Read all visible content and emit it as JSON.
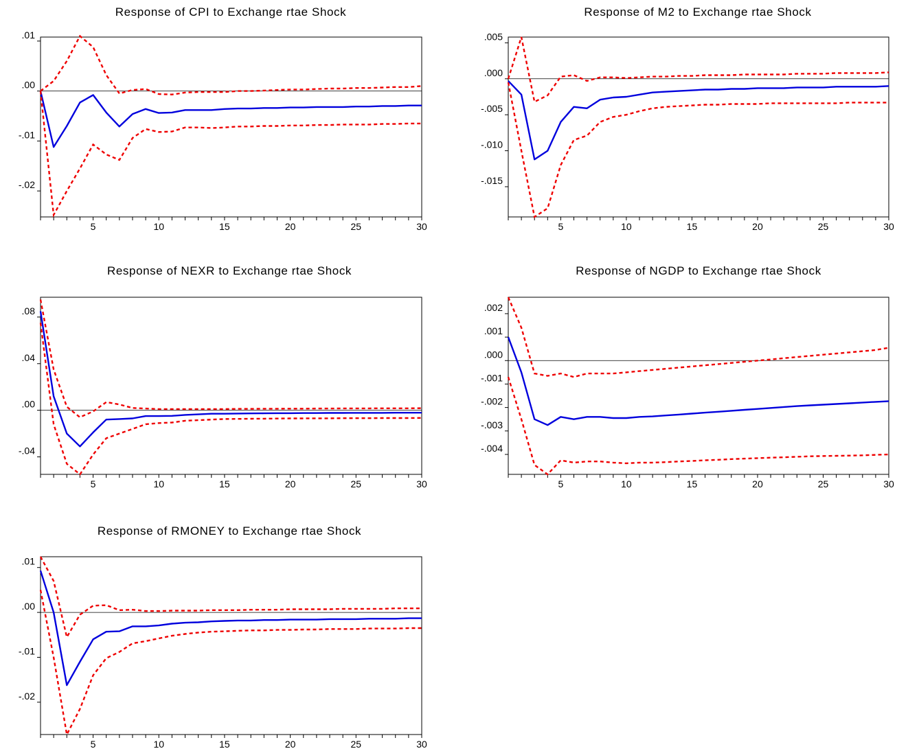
{
  "chart_data": [
    {
      "type": "line",
      "title": "Response of CPI to Exchange rtae Shock",
      "x_ticks": [
        "5",
        "10",
        "15",
        "20",
        "25",
        "30"
      ],
      "y_ticks": [
        ".01",
        ".00",
        "-.01",
        "-.02"
      ],
      "xlim": [
        1,
        30
      ],
      "ylim": [
        -0.0252,
        0.0108
      ],
      "grid": false,
      "x": [
        1,
        2,
        3,
        4,
        5,
        6,
        7,
        8,
        9,
        10,
        11,
        12,
        13,
        14,
        15,
        16,
        17,
        18,
        19,
        20,
        21,
        22,
        23,
        24,
        25,
        26,
        27,
        28,
        29,
        30
      ],
      "series": [
        {
          "style": "solid",
          "color": "#0000dd",
          "values": [
            0.0,
            -0.0112,
            -0.007,
            -0.0023,
            -0.0008,
            -0.0043,
            -0.0071,
            -0.0046,
            -0.0036,
            -0.0044,
            -0.0043,
            -0.0038,
            -0.0038,
            -0.0038,
            -0.0036,
            -0.0035,
            -0.0035,
            -0.0034,
            -0.0034,
            -0.0033,
            -0.0033,
            -0.0032,
            -0.0032,
            -0.0032,
            -0.0031,
            -0.0031,
            -0.003,
            -0.003,
            -0.0029,
            -0.0029
          ]
        },
        {
          "style": "dashed",
          "color": "#ee0000",
          "values": [
            0.0,
            0.002,
            0.006,
            0.011,
            0.0088,
            0.0032,
            -0.0005,
            0.0002,
            0.0004,
            -0.0006,
            -0.0007,
            -0.0003,
            -0.0002,
            -0.0002,
            -0.0002,
            0.0,
            0.0,
            0.0001,
            0.0002,
            0.0003,
            0.0003,
            0.0004,
            0.0005,
            0.0005,
            0.0006,
            0.0006,
            0.0007,
            0.0008,
            0.0008,
            0.001
          ]
        },
        {
          "style": "dashed",
          "color": "#ee0000",
          "values": [
            0.0,
            -0.0248,
            -0.02,
            -0.0155,
            -0.0107,
            -0.0127,
            -0.0138,
            -0.0094,
            -0.0076,
            -0.0082,
            -0.0081,
            -0.0073,
            -0.0073,
            -0.0074,
            -0.0073,
            -0.0071,
            -0.0071,
            -0.007,
            -0.007,
            -0.0069,
            -0.0069,
            -0.0068,
            -0.0068,
            -0.0067,
            -0.0067,
            -0.0067,
            -0.0066,
            -0.0066,
            -0.0065,
            -0.0065
          ]
        }
      ]
    },
    {
      "type": "line",
      "title": "Response of M2 to  Exchange rtae Shock",
      "x_ticks": [
        "5",
        "10",
        "15",
        "20",
        "25",
        "30"
      ],
      "y_ticks": [
        ".005",
        ".000",
        "-.005",
        "-.010",
        "-.015"
      ],
      "xlim": [
        1,
        30
      ],
      "ylim": [
        -0.0192,
        0.0058
      ],
      "grid": false,
      "x": [
        1,
        2,
        3,
        4,
        5,
        6,
        7,
        8,
        9,
        10,
        11,
        12,
        13,
        14,
        15,
        16,
        17,
        18,
        19,
        20,
        21,
        22,
        23,
        24,
        25,
        26,
        27,
        28,
        29,
        30
      ],
      "series": [
        {
          "style": "solid",
          "color": "#0000dd",
          "values": [
            -0.0003,
            -0.0022,
            -0.0112,
            -0.01,
            -0.006,
            -0.0039,
            -0.0041,
            -0.0029,
            -0.0026,
            -0.0025,
            -0.0022,
            -0.0019,
            -0.0018,
            -0.0017,
            -0.0016,
            -0.0015,
            -0.0015,
            -0.0014,
            -0.0014,
            -0.0013,
            -0.0013,
            -0.0013,
            -0.0012,
            -0.0012,
            -0.0012,
            -0.0011,
            -0.0011,
            -0.0011,
            -0.0011,
            -0.001
          ]
        },
        {
          "style": "dashed",
          "color": "#ee0000",
          "values": [
            0.0,
            0.0058,
            -0.0032,
            -0.0023,
            0.0003,
            0.0005,
            -0.0003,
            0.0002,
            0.0002,
            0.0001,
            0.0002,
            0.0003,
            0.0003,
            0.0004,
            0.0004,
            0.0005,
            0.0005,
            0.0005,
            0.0006,
            0.0006,
            0.0006,
            0.0006,
            0.0007,
            0.0007,
            0.0007,
            0.0008,
            0.0008,
            0.0008,
            0.0008,
            0.0009
          ]
        },
        {
          "style": "dashed",
          "color": "#ee0000",
          "values": [
            -0.0005,
            -0.01,
            -0.0192,
            -0.018,
            -0.012,
            -0.0085,
            -0.0079,
            -0.006,
            -0.0053,
            -0.005,
            -0.0045,
            -0.0041,
            -0.0039,
            -0.0038,
            -0.0037,
            -0.0036,
            -0.0036,
            -0.0035,
            -0.0035,
            -0.0035,
            -0.0034,
            -0.0034,
            -0.0034,
            -0.0034,
            -0.0034,
            -0.0034,
            -0.0033,
            -0.0033,
            -0.0033,
            -0.0033
          ]
        }
      ]
    },
    {
      "type": "line",
      "title": "Response of NEXR to  Exchange rtae Shock",
      "x_ticks": [
        "5",
        "10",
        "15",
        "20",
        "25",
        "30"
      ],
      "y_ticks": [
        ".08",
        ".04",
        ".00",
        "-.04"
      ],
      "xlim": [
        1,
        30
      ],
      "ylim": [
        -0.055,
        0.097
      ],
      "grid": false,
      "x": [
        1,
        2,
        3,
        4,
        5,
        6,
        7,
        8,
        9,
        10,
        11,
        12,
        13,
        14,
        15,
        16,
        17,
        18,
        19,
        20,
        21,
        22,
        23,
        24,
        25,
        26,
        27,
        28,
        29,
        30
      ],
      "series": [
        {
          "style": "solid",
          "color": "#0000dd",
          "values": [
            0.085,
            0.012,
            -0.02,
            -0.031,
            -0.019,
            -0.008,
            -0.0075,
            -0.007,
            -0.005,
            -0.005,
            -0.0048,
            -0.004,
            -0.0035,
            -0.003,
            -0.003,
            -0.0028,
            -0.0027,
            -0.0026,
            -0.0025,
            -0.0025,
            -0.0024,
            -0.0024,
            -0.0023,
            -0.0023,
            -0.0022,
            -0.0022,
            -0.0022,
            -0.0021,
            -0.0021,
            -0.0021
          ]
        },
        {
          "style": "dashed",
          "color": "#ee0000",
          "values": [
            0.095,
            0.035,
            0.003,
            -0.006,
            -0.001,
            0.007,
            0.005,
            0.002,
            0.0015,
            0.001,
            0.001,
            0.001,
            0.001,
            0.001,
            0.001,
            0.0012,
            0.0012,
            0.0013,
            0.0013,
            0.0014,
            0.0014,
            0.0015,
            0.0015,
            0.0016,
            0.0016,
            0.0016,
            0.0017,
            0.0017,
            0.0017,
            0.0018
          ]
        },
        {
          "style": "dashed",
          "color": "#ee0000",
          "values": [
            0.075,
            -0.012,
            -0.046,
            -0.055,
            -0.038,
            -0.024,
            -0.02,
            -0.016,
            -0.012,
            -0.011,
            -0.0105,
            -0.009,
            -0.0085,
            -0.008,
            -0.0075,
            -0.0074,
            -0.0073,
            -0.0072,
            -0.0071,
            -0.007,
            -0.007,
            -0.0069,
            -0.0069,
            -0.0068,
            -0.0068,
            -0.0068,
            -0.0067,
            -0.0067,
            -0.0067,
            -0.0066
          ]
        }
      ]
    },
    {
      "type": "line",
      "title": "Response of NGDP to  Exchange rtae Shock",
      "x_ticks": [
        "5",
        "10",
        "15",
        "20",
        "25",
        "30"
      ],
      "y_ticks": [
        ".002",
        ".001",
        ".000",
        "-.001",
        "-.002",
        "-.003",
        "-.004"
      ],
      "xlim": [
        1,
        30
      ],
      "ylim": [
        -0.00485,
        0.0027
      ],
      "grid": false,
      "x": [
        1,
        2,
        3,
        4,
        5,
        6,
        7,
        8,
        9,
        10,
        11,
        12,
        13,
        14,
        15,
        16,
        17,
        18,
        19,
        20,
        21,
        22,
        23,
        24,
        25,
        26,
        27,
        28,
        29,
        30
      ],
      "series": [
        {
          "style": "solid",
          "color": "#0000dd",
          "values": [
            0.001,
            -0.0005,
            -0.0025,
            -0.00275,
            -0.0024,
            -0.0025,
            -0.0024,
            -0.0024,
            -0.00245,
            -0.00245,
            -0.0024,
            -0.00238,
            -0.00234,
            -0.0023,
            -0.00226,
            -0.00222,
            -0.00218,
            -0.00214,
            -0.0021,
            -0.00206,
            -0.00202,
            -0.00198,
            -0.00194,
            -0.00191,
            -0.00188,
            -0.00185,
            -0.00182,
            -0.00179,
            -0.00176,
            -0.00173
          ]
        },
        {
          "style": "dashed",
          "color": "#ee0000",
          "values": [
            0.0027,
            0.0014,
            -0.00055,
            -0.00065,
            -0.00055,
            -0.0007,
            -0.00055,
            -0.00055,
            -0.00055,
            -0.0005,
            -0.00045,
            -0.0004,
            -0.00035,
            -0.0003,
            -0.00025,
            -0.0002,
            -0.00015,
            -0.0001,
            -5e-05,
            0.0,
            5e-05,
            0.0001,
            0.00015,
            0.0002,
            0.00025,
            0.0003,
            0.00035,
            0.0004,
            0.00045,
            0.00055
          ]
        },
        {
          "style": "dashed",
          "color": "#ee0000",
          "values": [
            -0.0007,
            -0.0025,
            -0.00445,
            -0.00485,
            -0.00425,
            -0.00435,
            -0.0043,
            -0.0043,
            -0.00435,
            -0.00438,
            -0.00435,
            -0.00435,
            -0.00433,
            -0.0043,
            -0.00428,
            -0.00425,
            -0.00423,
            -0.0042,
            -0.00418,
            -0.00416,
            -0.00414,
            -0.00412,
            -0.0041,
            -0.00408,
            -0.00407,
            -0.00406,
            -0.00405,
            -0.00404,
            -0.00402,
            -0.004
          ]
        }
      ]
    },
    {
      "type": "line",
      "title": "Response of RMONEY to  Exchange rtae Shock",
      "x_ticks": [
        "5",
        "10",
        "15",
        "20",
        "25",
        "30"
      ],
      "y_ticks": [
        ".01",
        ".00",
        "-.01",
        "-.02"
      ],
      "xlim": [
        1,
        30
      ],
      "ylim": [
        -0.0272,
        0.0124
      ],
      "grid": false,
      "x": [
        1,
        2,
        3,
        4,
        5,
        6,
        7,
        8,
        9,
        10,
        11,
        12,
        13,
        14,
        15,
        16,
        17,
        18,
        19,
        20,
        21,
        22,
        23,
        24,
        25,
        26,
        27,
        28,
        29,
        30
      ],
      "series": [
        {
          "style": "solid",
          "color": "#0000dd",
          "values": [
            0.0093,
            0.0,
            -0.0162,
            -0.011,
            -0.006,
            -0.0043,
            -0.0042,
            -0.0031,
            -0.0031,
            -0.0029,
            -0.0025,
            -0.0023,
            -0.0022,
            -0.002,
            -0.0019,
            -0.0018,
            -0.0018,
            -0.0017,
            -0.0017,
            -0.0016,
            -0.0016,
            -0.0016,
            -0.0015,
            -0.0015,
            -0.0015,
            -0.0014,
            -0.0014,
            -0.0014,
            -0.0013,
            -0.0013
          ]
        },
        {
          "style": "dashed",
          "color": "#ee0000",
          "values": [
            0.0124,
            0.007,
            -0.0055,
            -0.0005,
            0.0015,
            0.0016,
            0.0005,
            0.0006,
            0.0003,
            0.0003,
            0.0004,
            0.0004,
            0.0004,
            0.0005,
            0.0005,
            0.0005,
            0.0006,
            0.0006,
            0.0006,
            0.0007,
            0.0007,
            0.0007,
            0.0007,
            0.0008,
            0.0008,
            0.0008,
            0.0008,
            0.0009,
            0.0009,
            0.0009
          ]
        },
        {
          "style": "dashed",
          "color": "#ee0000",
          "values": [
            0.005,
            -0.01,
            -0.0272,
            -0.0215,
            -0.014,
            -0.0102,
            -0.0088,
            -0.0069,
            -0.0064,
            -0.0058,
            -0.0052,
            -0.0048,
            -0.0045,
            -0.0043,
            -0.0042,
            -0.0041,
            -0.004,
            -0.004,
            -0.0039,
            -0.0039,
            -0.0038,
            -0.0038,
            -0.0037,
            -0.0037,
            -0.0037,
            -0.0036,
            -0.0036,
            -0.0036,
            -0.0035,
            -0.0035
          ]
        }
      ]
    }
  ]
}
